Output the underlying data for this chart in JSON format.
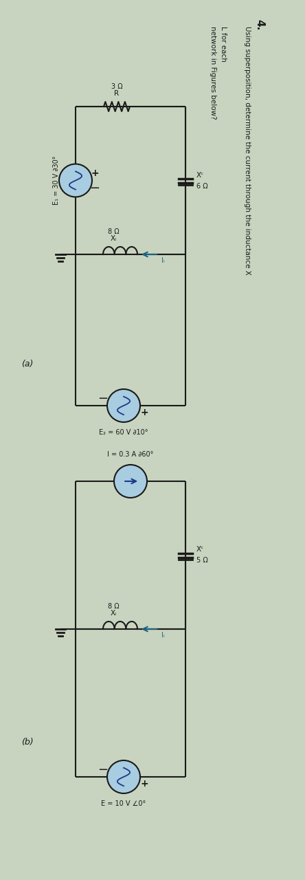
{
  "bg_color": "#c8d4bf",
  "wire_color": "#1a1a1a",
  "circle_color_vs": "#a8cce0",
  "circle_color_cs": "#a8cce0",
  "text_color": "#1a1a1a",
  "arrow_color": "#1a6080",
  "title_number": "4.",
  "title_line1": "Using superposition, determine the current through the inductance X",
  "title_line2": "network in Figures below?",
  "circuit_a": {
    "label": "(a)",
    "E1": "E₁ = 30 V ∂30°",
    "E2": "E₂ = 60 V ∂10°",
    "R_val": "3 Ω",
    "R_lbl": "R",
    "XL_val": "8 Ω",
    "XL_lbl": "Xₗ",
    "XC_val": "6 Ω",
    "XC_lbl": "Xᶜ",
    "IL_lbl": "Iₗ"
  },
  "circuit_b": {
    "label": "(b)",
    "I_src": "I = 0.3 A ∂60°",
    "E": "E = 10 V ∠0°",
    "XL_val": "8 Ω",
    "XL_lbl": "Xₗ",
    "XC_val": "5 Ω",
    "XC_lbl": "Xᶜ",
    "IL_lbl": "Iₗ"
  }
}
